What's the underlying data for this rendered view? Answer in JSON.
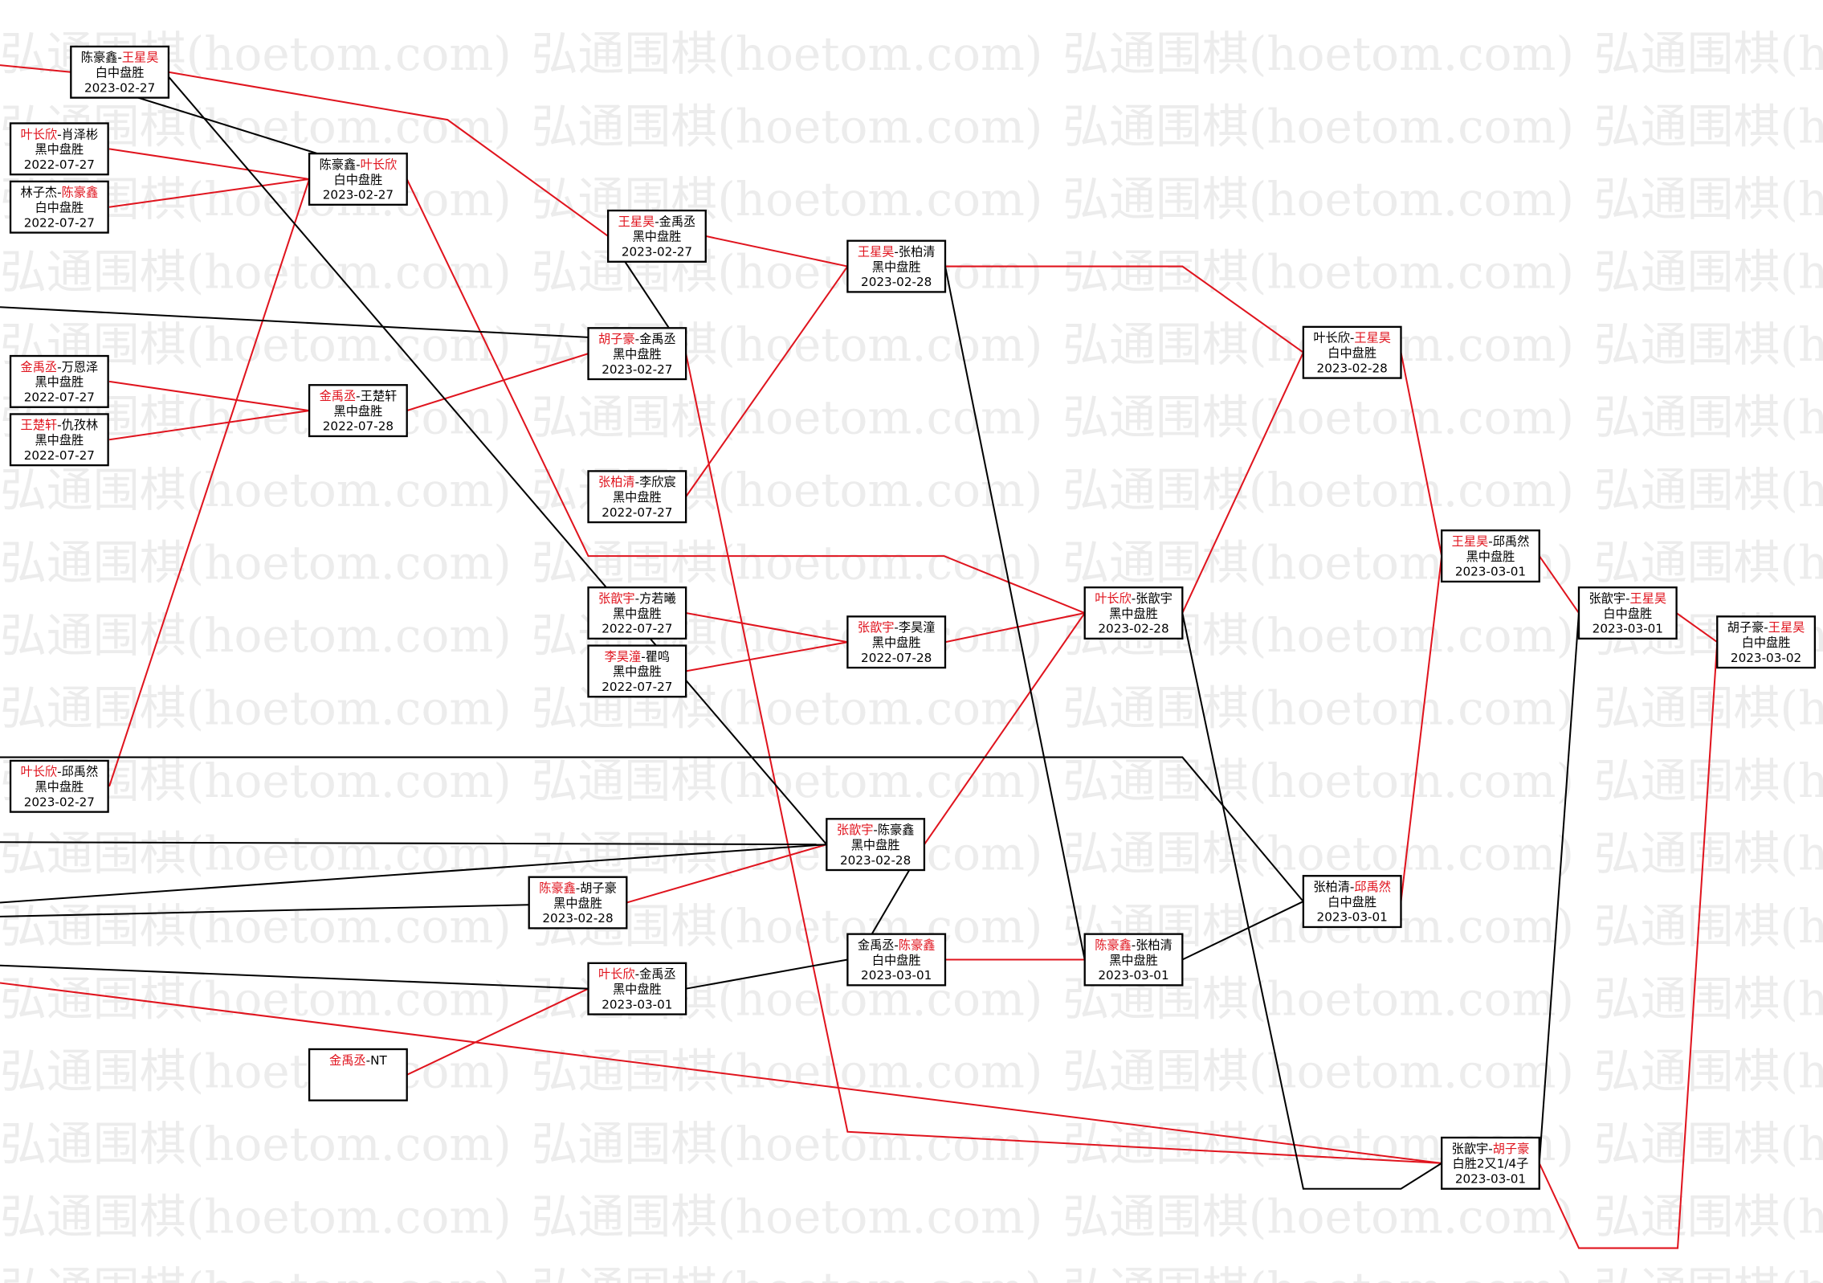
{
  "watermark": "弘通围棋(hoetom.com)",
  "colors": {
    "winner_red": "#e0141e",
    "line_red": "#e0141e",
    "line_black": "#000000"
  },
  "matches": [
    {
      "p1": "陈豪鑫",
      "p2": "王星昊",
      "winner": 2,
      "result": "白中盘胜",
      "date": "2023-02-27"
    },
    {
      "p1": "叶长欣",
      "p2": "肖泽彬",
      "winner": 1,
      "result": "黑中盘胜",
      "date": "2022-07-27"
    },
    {
      "p1": "林子杰",
      "p2": "陈豪鑫",
      "winner": 2,
      "result": "白中盘胜",
      "date": "2022-07-27"
    },
    {
      "p1": "陈豪鑫",
      "p2": "叶长欣",
      "winner": 2,
      "result": "白中盘胜",
      "date": "2023-02-27"
    },
    {
      "p1": "王星昊",
      "p2": "金禹丞",
      "winner": 1,
      "result": "黑中盘胜",
      "date": "2023-02-27"
    },
    {
      "p1": "王星昊",
      "p2": "张柏清",
      "winner": 1,
      "result": "黑中盘胜",
      "date": "2023-02-28"
    },
    {
      "p1": "胡子豪",
      "p2": "金禹丞",
      "winner": 1,
      "result": "黑中盘胜",
      "date": "2023-02-27"
    },
    {
      "p1": "金禹丞",
      "p2": "万恩泽",
      "winner": 1,
      "result": "黑中盘胜",
      "date": "2022-07-27"
    },
    {
      "p1": "王楚轩",
      "p2": "仇孜林",
      "winner": 1,
      "result": "黑中盘胜",
      "date": "2022-07-27"
    },
    {
      "p1": "金禹丞",
      "p2": "王楚轩",
      "winner": 1,
      "result": "黑中盘胜",
      "date": "2022-07-28"
    },
    {
      "p1": "张柏清",
      "p2": "李欣宸",
      "winner": 1,
      "result": "黑中盘胜",
      "date": "2022-07-27"
    },
    {
      "p1": "张歆宇",
      "p2": "方若曦",
      "winner": 1,
      "result": "黑中盘胜",
      "date": "2022-07-27"
    },
    {
      "p1": "李昊潼",
      "p2": "瞿鸣",
      "winner": 1,
      "result": "黑中盘胜",
      "date": "2022-07-27"
    },
    {
      "p1": "张歆宇",
      "p2": "李昊潼",
      "winner": 1,
      "result": "黑中盘胜",
      "date": "2022-07-28"
    },
    {
      "p1": "叶长欣",
      "p2": "张歆宇",
      "winner": 1,
      "result": "黑中盘胜",
      "date": "2023-02-28"
    },
    {
      "p1": "叶长欣",
      "p2": "王星昊",
      "winner": 2,
      "result": "白中盘胜",
      "date": "2023-02-28"
    },
    {
      "p1": "王星昊",
      "p2": "邱禹然",
      "winner": 1,
      "result": "黑中盘胜",
      "date": "2023-03-01"
    },
    {
      "p1": "张歆宇",
      "p2": "王星昊",
      "winner": 2,
      "result": "白中盘胜",
      "date": "2023-03-01"
    },
    {
      "p1": "胡子豪",
      "p2": "王星昊",
      "winner": 2,
      "result": "白中盘胜",
      "date": "2023-03-02"
    },
    {
      "p1": "叶长欣",
      "p2": "邱禹然",
      "winner": 1,
      "result": "黑中盘胜",
      "date": "2023-02-27"
    },
    {
      "p1": "张歆宇",
      "p2": "陈豪鑫",
      "winner": 1,
      "result": "黑中盘胜",
      "date": "2023-02-28"
    },
    {
      "p1": "陈豪鑫",
      "p2": "胡子豪",
      "winner": 1,
      "result": "黑中盘胜",
      "date": "2023-02-28"
    },
    {
      "p1": "叶长欣",
      "p2": "金禹丞",
      "winner": 1,
      "result": "黑中盘胜",
      "date": "2023-03-01"
    },
    {
      "p1": "金禹丞",
      "p2": "陈豪鑫",
      "winner": 2,
      "result": "白中盘胜",
      "date": "2023-03-01"
    },
    {
      "p1": "陈豪鑫",
      "p2": "张柏清",
      "winner": 1,
      "result": "黑中盘胜",
      "date": "2023-03-01"
    },
    {
      "p1": "张柏清",
      "p2": "邱禹然",
      "winner": 2,
      "result": "白中盘胜",
      "date": "2023-03-01"
    },
    {
      "p1": "张歆宇",
      "p2": "胡子豪",
      "winner": 2,
      "result": "白胜2又1/4子",
      "date": "2023-03-01"
    },
    {
      "p1": "金禹丞",
      "p2": "NT",
      "winner": 1,
      "result": "",
      "date": ""
    }
  ]
}
